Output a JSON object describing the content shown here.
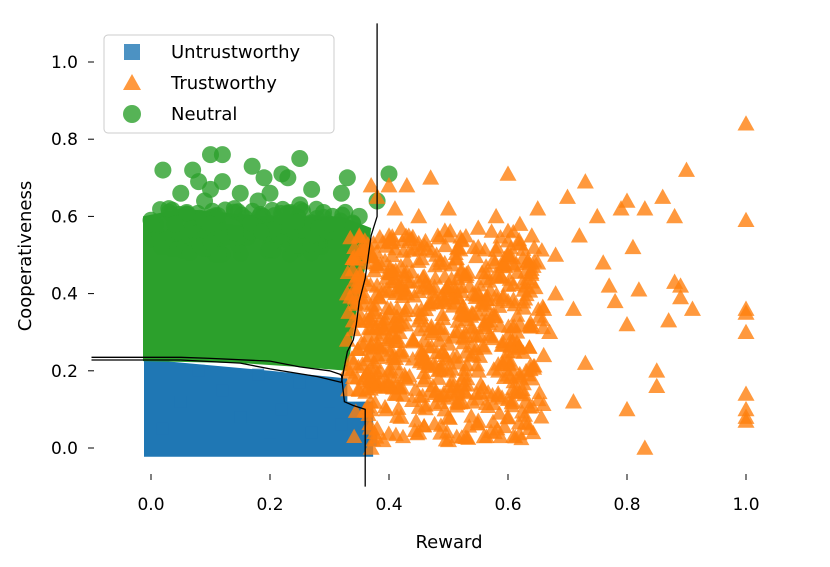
{
  "chart_data": {
    "type": "scatter",
    "xlabel": "Reward",
    "ylabel": "Cooperativeness",
    "xlim": [
      -0.1,
      1.02
    ],
    "ylim": [
      -0.1,
      1.1
    ],
    "xticks": [
      0.0,
      0.2,
      0.4,
      0.6,
      0.8,
      1.0
    ],
    "xtick_labels": [
      "0.0",
      "0.2",
      "0.4",
      "0.6",
      "0.8",
      "1.0"
    ],
    "yticks": [
      0.0,
      0.2,
      0.4,
      0.6,
      0.8,
      1.0
    ],
    "ytick_labels": [
      "0.0",
      "0.2",
      "0.4",
      "0.6",
      "0.8",
      "1.0"
    ],
    "grid": false,
    "legend_position": "top-left",
    "series": [
      {
        "name": "Untrustworthy",
        "marker": "square",
        "color": "#1f77b4",
        "region": {
          "x": [
            0.0,
            0.37
          ],
          "y": [
            -0.02,
            0.23
          ]
        },
        "points": [
          [
            0.0,
            0.0
          ],
          [
            0.02,
            0.05
          ],
          [
            0.05,
            0.12
          ],
          [
            0.08,
            0.2
          ],
          [
            0.1,
            0.02
          ],
          [
            0.12,
            0.15
          ],
          [
            0.15,
            0.08
          ],
          [
            0.18,
            0.19
          ],
          [
            0.2,
            0.01
          ],
          [
            0.22,
            0.1
          ],
          [
            0.25,
            0.17
          ],
          [
            0.27,
            0.04
          ],
          [
            0.3,
            0.12
          ],
          [
            0.32,
            0.06
          ],
          [
            0.34,
            0.02
          ],
          [
            0.35,
            0.1
          ],
          [
            0.36,
            0.03
          ],
          [
            0.37,
            0.02
          ]
        ]
      },
      {
        "name": "Trustworthy",
        "marker": "triangle",
        "color": "#ff7f0e",
        "points": [
          [
            1.0,
            0.84
          ],
          [
            1.0,
            0.59
          ],
          [
            1.0,
            0.36
          ],
          [
            1.0,
            0.35
          ],
          [
            1.0,
            0.3
          ],
          [
            1.0,
            0.14
          ],
          [
            1.0,
            0.1
          ],
          [
            1.0,
            0.08
          ],
          [
            1.0,
            0.07
          ],
          [
            0.9,
            0.72
          ],
          [
            0.88,
            0.6
          ],
          [
            0.88,
            0.43
          ],
          [
            0.89,
            0.42
          ],
          [
            0.89,
            0.39
          ],
          [
            0.91,
            0.36
          ],
          [
            0.86,
            0.65
          ],
          [
            0.87,
            0.33
          ],
          [
            0.85,
            0.2
          ],
          [
            0.85,
            0.16
          ],
          [
            0.83,
            0.0
          ],
          [
            0.8,
            0.64
          ],
          [
            0.83,
            0.62
          ],
          [
            0.79,
            0.62
          ],
          [
            0.81,
            0.52
          ],
          [
            0.82,
            0.41
          ],
          [
            0.8,
            0.32
          ],
          [
            0.78,
            0.38
          ],
          [
            0.8,
            0.1
          ],
          [
            0.73,
            0.69
          ],
          [
            0.7,
            0.65
          ],
          [
            0.75,
            0.6
          ],
          [
            0.72,
            0.55
          ],
          [
            0.76,
            0.48
          ],
          [
            0.77,
            0.42
          ],
          [
            0.71,
            0.36
          ],
          [
            0.73,
            0.22
          ],
          [
            0.71,
            0.12
          ],
          [
            0.6,
            0.71
          ],
          [
            0.65,
            0.62
          ],
          [
            0.68,
            0.5
          ],
          [
            0.47,
            0.7
          ],
          [
            0.43,
            0.68
          ],
          [
            0.4,
            0.68
          ],
          [
            0.37,
            0.68
          ],
          [
            0.38,
            0.65
          ],
          [
            0.41,
            0.62
          ],
          [
            0.45,
            0.6
          ],
          [
            0.5,
            0.62
          ],
          [
            0.55,
            0.57
          ],
          [
            0.58,
            0.6
          ],
          [
            0.62,
            0.58
          ],
          [
            0.64,
            0.55
          ],
          [
            0.35,
            0.55
          ],
          [
            0.4,
            0.55
          ],
          [
            0.45,
            0.53
          ],
          [
            0.5,
            0.55
          ],
          [
            0.55,
            0.52
          ],
          [
            0.6,
            0.5
          ],
          [
            0.65,
            0.48
          ],
          [
            0.36,
            0.48
          ],
          [
            0.42,
            0.47
          ],
          [
            0.48,
            0.5
          ],
          [
            0.53,
            0.45
          ],
          [
            0.58,
            0.45
          ],
          [
            0.63,
            0.42
          ],
          [
            0.68,
            0.4
          ],
          [
            0.33,
            0.4
          ],
          [
            0.38,
            0.42
          ],
          [
            0.43,
            0.4
          ],
          [
            0.5,
            0.42
          ],
          [
            0.55,
            0.4
          ],
          [
            0.6,
            0.38
          ],
          [
            0.66,
            0.36
          ],
          [
            0.34,
            0.33
          ],
          [
            0.4,
            0.35
          ],
          [
            0.45,
            0.33
          ],
          [
            0.52,
            0.35
          ],
          [
            0.57,
            0.33
          ],
          [
            0.62,
            0.32
          ],
          [
            0.67,
            0.3
          ],
          [
            0.33,
            0.28
          ],
          [
            0.38,
            0.27
          ],
          [
            0.44,
            0.28
          ],
          [
            0.5,
            0.27
          ],
          [
            0.56,
            0.26
          ],
          [
            0.61,
            0.25
          ],
          [
            0.66,
            0.24
          ],
          [
            0.34,
            0.22
          ],
          [
            0.4,
            0.2
          ],
          [
            0.46,
            0.22
          ],
          [
            0.5,
            0.2
          ],
          [
            0.55,
            0.2
          ],
          [
            0.6,
            0.19
          ],
          [
            0.64,
            0.18
          ],
          [
            0.35,
            0.15
          ],
          [
            0.41,
            0.14
          ],
          [
            0.47,
            0.15
          ],
          [
            0.5,
            0.13
          ],
          [
            0.54,
            0.12
          ],
          [
            0.59,
            0.13
          ],
          [
            0.63,
            0.12
          ],
          [
            0.37,
            0.1
          ],
          [
            0.42,
            0.08
          ],
          [
            0.5,
            0.08
          ],
          [
            0.55,
            0.07
          ],
          [
            0.6,
            0.08
          ],
          [
            0.38,
            0.05
          ],
          [
            0.45,
            0.04
          ],
          [
            0.5,
            0.02
          ],
          [
            0.56,
            0.03
          ],
          [
            0.39,
            0.02
          ],
          [
            0.37,
            0.0
          ]
        ]
      },
      {
        "name": "Neutral",
        "marker": "circle",
        "color": "#2ca02c",
        "region": {
          "x": [
            0.0,
            0.37
          ],
          "y": [
            0.22,
            0.6
          ]
        },
        "points": [
          [
            0.1,
            0.76
          ],
          [
            0.12,
            0.76
          ],
          [
            0.25,
            0.75
          ],
          [
            0.02,
            0.72
          ],
          [
            0.07,
            0.72
          ],
          [
            0.17,
            0.73
          ],
          [
            0.22,
            0.71
          ],
          [
            0.4,
            0.71
          ],
          [
            0.19,
            0.7
          ],
          [
            0.23,
            0.7
          ],
          [
            0.33,
            0.7
          ],
          [
            0.08,
            0.69
          ],
          [
            0.12,
            0.69
          ],
          [
            0.27,
            0.67
          ],
          [
            0.05,
            0.66
          ],
          [
            0.1,
            0.67
          ],
          [
            0.15,
            0.66
          ],
          [
            0.2,
            0.66
          ],
          [
            0.32,
            0.66
          ],
          [
            0.09,
            0.64
          ],
          [
            0.18,
            0.64
          ],
          [
            0.25,
            0.63
          ],
          [
            0.38,
            0.64
          ],
          [
            0.03,
            0.62
          ],
          [
            0.06,
            0.61
          ],
          [
            0.14,
            0.62
          ],
          [
            0.22,
            0.6
          ],
          [
            0.29,
            0.61
          ],
          [
            0.35,
            0.6
          ],
          [
            0.0,
            0.59
          ],
          [
            0.04,
            0.58
          ],
          [
            0.1,
            0.58
          ],
          [
            0.3,
            0.58
          ]
        ]
      }
    ],
    "decision_boundaries": [
      {
        "points": [
          [
            -0.1,
            0.235
          ],
          [
            0.05,
            0.235
          ],
          [
            0.1,
            0.232
          ],
          [
            0.2,
            0.225
          ],
          [
            0.25,
            0.21
          ],
          [
            0.3,
            0.2
          ],
          [
            0.32,
            0.19
          ]
        ]
      },
      {
        "points": [
          [
            -0.1,
            0.228
          ],
          [
            0.05,
            0.228
          ],
          [
            0.15,
            0.22
          ],
          [
            0.2,
            0.205
          ],
          [
            0.28,
            0.185
          ],
          [
            0.32,
            0.17
          ]
        ]
      },
      {
        "points": [
          [
            0.32,
            0.19
          ],
          [
            0.325,
            0.12
          ],
          [
            0.34,
            0.11
          ],
          [
            0.36,
            0.1
          ],
          [
            0.36,
            0.06
          ],
          [
            0.36,
            -0.1
          ]
        ]
      },
      {
        "points": [
          [
            0.32,
            0.17
          ],
          [
            0.33,
            0.25
          ],
          [
            0.34,
            0.28
          ],
          [
            0.345,
            0.32
          ],
          [
            0.35,
            0.38
          ],
          [
            0.36,
            0.44
          ],
          [
            0.37,
            0.55
          ],
          [
            0.38,
            0.6
          ],
          [
            0.38,
            0.66
          ],
          [
            0.38,
            0.8
          ],
          [
            0.38,
            1.1
          ]
        ]
      }
    ]
  }
}
